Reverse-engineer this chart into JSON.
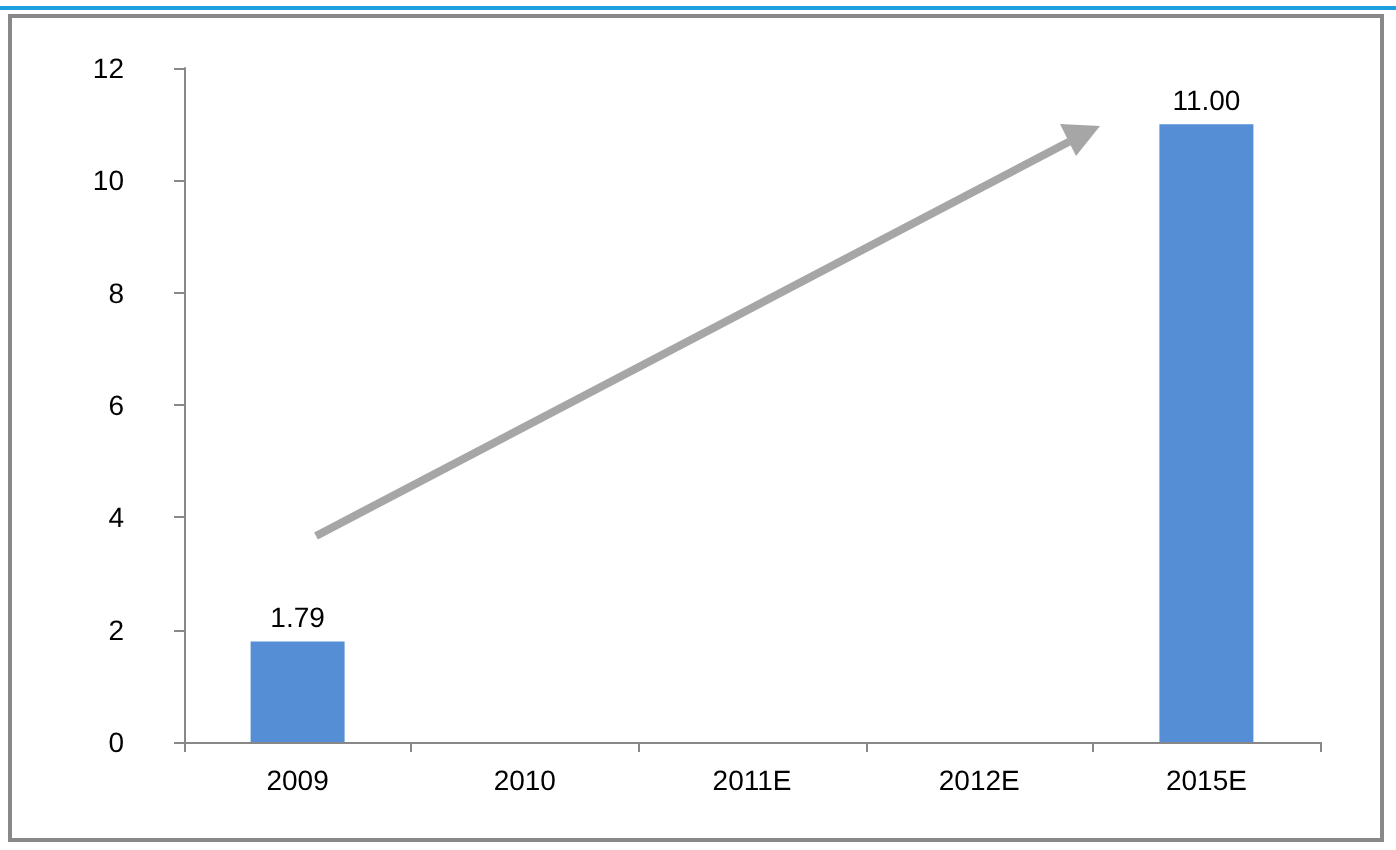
{
  "chart_data": {
    "type": "bar",
    "categories": [
      "2009",
      "2010",
      "2011E",
      "2012E",
      "2015E"
    ],
    "values": [
      1.79,
      null,
      null,
      null,
      11.0
    ],
    "value_labels": [
      "1.79",
      null,
      null,
      null,
      "11.00"
    ],
    "color": "#558ed5",
    "ylim": [
      0,
      12
    ],
    "yticks": [
      0,
      2,
      4,
      6,
      8,
      10,
      12
    ],
    "grid": false
  }
}
